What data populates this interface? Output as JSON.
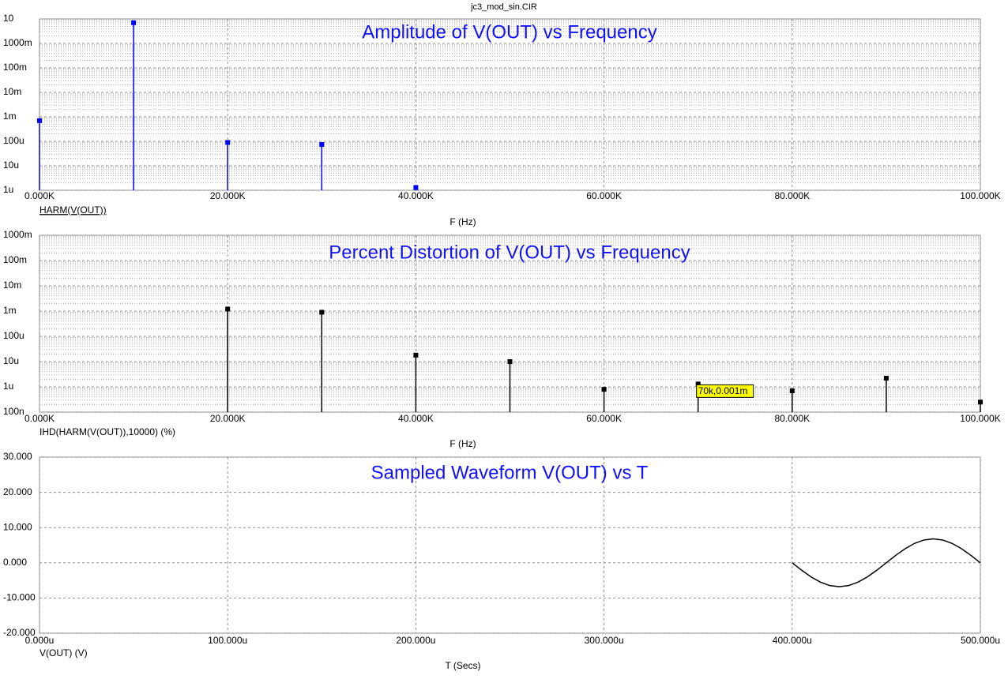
{
  "title": "jc3_mod_sin.CIR",
  "chart_data": [
    {
      "type": "stem",
      "title": "Amplitude of V(OUT) vs Frequency",
      "xlabel": "F (Hz)",
      "log_y": true,
      "grid": true,
      "xlim": [
        0,
        100000
      ],
      "xticks": [
        {
          "value": 0,
          "label": "0.000K"
        },
        {
          "value": 20000,
          "label": "20.000K"
        },
        {
          "value": 40000,
          "label": "40.000K"
        },
        {
          "value": 60000,
          "label": "60.000K"
        },
        {
          "value": 80000,
          "label": "80.000K"
        },
        {
          "value": 100000,
          "label": "100.000K"
        }
      ],
      "ylim": [
        1e-06,
        10
      ],
      "yticks": [
        {
          "value": 10,
          "label": "10"
        },
        {
          "value": 1,
          "label": "1000m"
        },
        {
          "value": 0.1,
          "label": "100m"
        },
        {
          "value": 0.01,
          "label": "10m"
        },
        {
          "value": 0.001,
          "label": "1m"
        },
        {
          "value": 0.0001,
          "label": "100u"
        },
        {
          "value": 1e-05,
          "label": "10u"
        },
        {
          "value": 1e-06,
          "label": "1u"
        }
      ],
      "x": [
        0,
        10000,
        20000,
        30000,
        40000
      ],
      "series": [
        {
          "name": "HARM(V(OUT))",
          "color": "#0000ff",
          "values": [
            0.0007,
            7,
            9e-05,
            7.4e-05,
            1.3e-06
          ]
        }
      ]
    },
    {
      "type": "stem",
      "title": "Percent Distortion of V(OUT) vs Frequency",
      "xlabel": "F (Hz)",
      "log_y": true,
      "grid": true,
      "xlim": [
        0,
        100000
      ],
      "xticks": [
        {
          "value": 0,
          "label": "0.000K"
        },
        {
          "value": 20000,
          "label": "20.000K"
        },
        {
          "value": 40000,
          "label": "40.000K"
        },
        {
          "value": 60000,
          "label": "60.000K"
        },
        {
          "value": 80000,
          "label": "80.000K"
        },
        {
          "value": 100000,
          "label": "100.000K"
        }
      ],
      "ylim": [
        1e-07,
        1
      ],
      "yticks": [
        {
          "value": 1,
          "label": "1000m"
        },
        {
          "value": 0.1,
          "label": "100m"
        },
        {
          "value": 0.01,
          "label": "10m"
        },
        {
          "value": 0.001,
          "label": "1m"
        },
        {
          "value": 0.0001,
          "label": "100u"
        },
        {
          "value": 1e-05,
          "label": "10u"
        },
        {
          "value": 1e-06,
          "label": "1u"
        },
        {
          "value": 1e-07,
          "label": "100n"
        }
      ],
      "x": [
        20000,
        30000,
        40000,
        50000,
        60000,
        70000,
        80000,
        90000,
        100000
      ],
      "series": [
        {
          "name": "IHD(HARM(V(OUT)),10000) (%)",
          "color": "#000000",
          "values": [
            0.0012,
            0.0009,
            1.8e-05,
            1e-05,
            8e-07,
            1.3e-06,
            7e-07,
            2.2e-06,
            2.5e-07
          ]
        }
      ],
      "annotation": {
        "text": "70k,0.001m",
        "x": 70000
      }
    },
    {
      "type": "line",
      "title": "Sampled Waveform  V(OUT) vs T",
      "xlabel": "T (Secs)",
      "log_y": false,
      "grid": true,
      "xlim": [
        0,
        0.0005
      ],
      "xticks": [
        {
          "value": 0,
          "label": "0.000u"
        },
        {
          "value": 0.0001,
          "label": "100.000u"
        },
        {
          "value": 0.0002,
          "label": "200.000u"
        },
        {
          "value": 0.0003,
          "label": "300.000u"
        },
        {
          "value": 0.0004,
          "label": "400.000u"
        },
        {
          "value": 0.0005,
          "label": "500.000u"
        }
      ],
      "ylim": [
        -20,
        30
      ],
      "yticks": [
        {
          "value": 30,
          "label": "30.000"
        },
        {
          "value": 20,
          "label": "20.000"
        },
        {
          "value": 10,
          "label": "10.000"
        },
        {
          "value": 0,
          "label": "0.000"
        },
        {
          "value": -10,
          "label": "-10.000"
        },
        {
          "value": -20,
          "label": "-20.000"
        }
      ],
      "x": [
        0.0004,
        0.000405,
        0.00041,
        0.000415,
        0.00042,
        0.000425,
        0.00043,
        0.000435,
        0.00044,
        0.000445,
        0.00045,
        0.000455,
        0.00046,
        0.000465,
        0.00047,
        0.000475,
        0.00048,
        0.000485,
        0.00049,
        0.000495,
        0.0005
      ],
      "series": [
        {
          "name": "V(OUT) (V)",
          "color": "#000000",
          "values": [
            0,
            -2.1,
            -4,
            -5.5,
            -6.47,
            -6.8,
            -6.47,
            -5.5,
            -4,
            -2.1,
            0,
            2.1,
            4,
            5.5,
            6.47,
            6.8,
            6.47,
            5.5,
            4,
            2.1,
            0
          ]
        }
      ]
    }
  ]
}
